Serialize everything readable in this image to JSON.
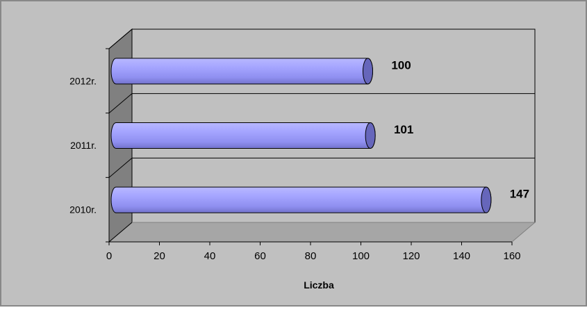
{
  "chart_data": {
    "type": "bar",
    "orientation": "horizontal",
    "style": "3d-cylinder",
    "categories": [
      "2012r.",
      "2011r.",
      "2010r."
    ],
    "values": [
      100,
      101,
      147
    ],
    "data_labels": [
      "100",
      "101",
      "147"
    ],
    "xlabel": "Liczba",
    "ylabel": "",
    "title": "",
    "xlim": [
      0,
      160
    ],
    "xticks": [
      "0",
      "20",
      "40",
      "60",
      "80",
      "100",
      "120",
      "140",
      "160"
    ],
    "grid": "horizontal",
    "legend": "none",
    "colors": {
      "bar_fill": "#9999ff",
      "bar_cap": "#6666bb",
      "chart_area": "#c0c0c0",
      "floor": "#a6a6a6",
      "side_wall": "#808080",
      "frame": "#808080"
    }
  }
}
